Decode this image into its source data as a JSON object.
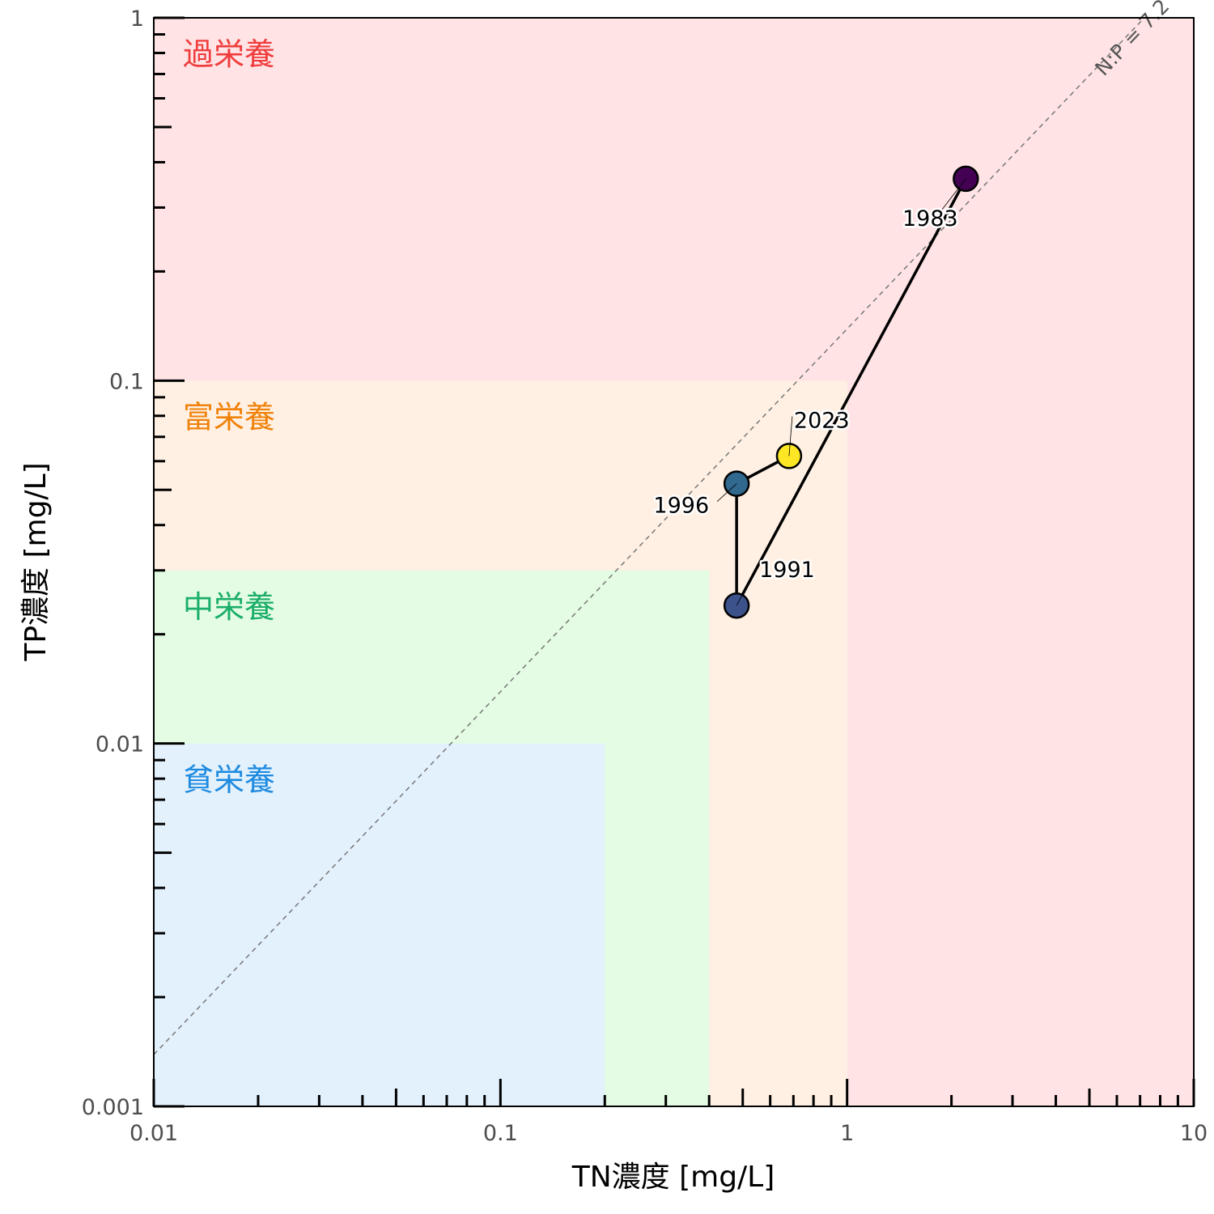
{
  "chart_data": {
    "type": "scatter",
    "xlabel": "TN濃度 [mg/L]",
    "ylabel": "TP濃度 [mg/L]",
    "x_scale": "log",
    "y_scale": "log",
    "xlim": [
      0.01,
      10
    ],
    "ylim": [
      0.001,
      1
    ],
    "x_ticks": [
      {
        "value": 0.01,
        "label": "0.01"
      },
      {
        "value": 0.1,
        "label": "0.1"
      },
      {
        "value": 1,
        "label": "1"
      },
      {
        "value": 10,
        "label": "10"
      }
    ],
    "y_ticks": [
      {
        "value": 0.001,
        "label": "0.001"
      },
      {
        "value": 0.01,
        "label": "0.01"
      },
      {
        "value": 0.1,
        "label": "0.1"
      },
      {
        "value": 1,
        "label": "1"
      }
    ],
    "zones": [
      {
        "label": "過栄養",
        "x_max": 10,
        "y_max": 1,
        "fill": "#ffe3e5",
        "text_color": "#f03c3c"
      },
      {
        "label": "富栄養",
        "x_max": 1,
        "y_max": 0.1,
        "fill": "#fff0e3",
        "text_color": "#f0820a"
      },
      {
        "label": "中栄養",
        "x_max": 0.4,
        "y_max": 0.03,
        "fill": "#e3fce3",
        "text_color": "#1aae6a"
      },
      {
        "label": "貧栄養",
        "x_max": 0.2,
        "y_max": 0.01,
        "fill": "#e3f1fd",
        "text_color": "#1e8be0"
      }
    ],
    "reference_line": {
      "label": "N:P = 7.2",
      "ratio": 7.2,
      "style": "dashed",
      "color": "#777777"
    },
    "points": [
      {
        "year": "1983",
        "x": 2.2,
        "y": 0.36,
        "color": "#440154"
      },
      {
        "year": "1991",
        "x": 0.48,
        "y": 0.024,
        "color": "#3b528b"
      },
      {
        "year": "1996",
        "x": 0.48,
        "y": 0.052,
        "color": "#31688e"
      },
      {
        "year": "2023",
        "x": 0.68,
        "y": 0.062,
        "color": "#fde725"
      }
    ],
    "connection_order": [
      "1983",
      "1991",
      "1996",
      "2023"
    ],
    "grid": false
  }
}
